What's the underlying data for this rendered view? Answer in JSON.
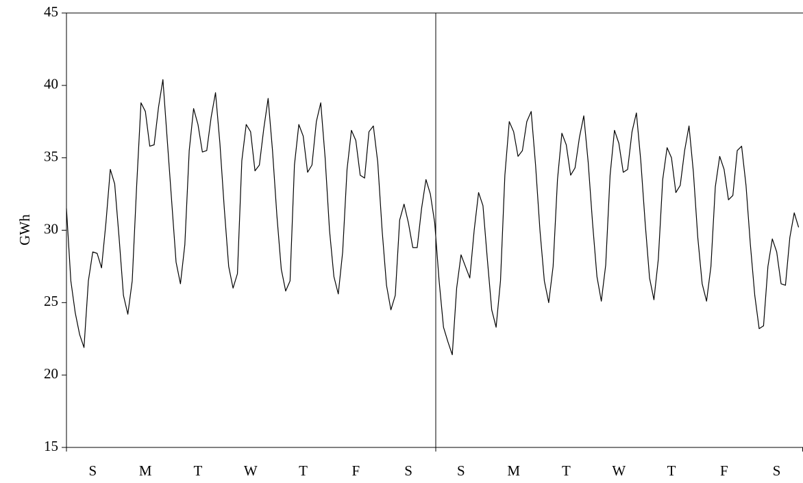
{
  "chart_data": {
    "type": "line",
    "y_label": "GWh",
    "categories": [
      "S",
      "M",
      "T",
      "W",
      "T",
      "F",
      "S",
      "S",
      "M",
      "T",
      "W",
      "T",
      "F",
      "S"
    ],
    "values": [
      [
        31.5,
        26.5,
        24.3,
        22.8,
        21.9,
        26.5,
        28.5,
        28.4,
        27.4,
        30.5,
        34.2,
        33.2
      ],
      [
        29.5,
        25.5,
        24.2,
        26.5,
        33,
        38.8,
        38.2,
        35.8,
        35.9,
        38.5,
        40.4,
        36.2
      ],
      [
        32,
        27.8,
        26.3,
        29,
        35.5,
        38.4,
        37.3,
        35.4,
        35.5,
        37.8,
        39.5,
        36
      ],
      [
        31.5,
        27.5,
        26,
        27,
        34.8,
        37.3,
        36.8,
        34.1,
        34.5,
        37,
        39.1,
        35.5
      ],
      [
        31,
        27.3,
        25.8,
        26.5,
        34.5,
        37.3,
        36.5,
        34,
        34.5,
        37.5,
        38.8,
        35
      ],
      [
        30,
        26.8,
        25.6,
        28.5,
        34.2,
        36.9,
        36.2,
        33.8,
        33.6,
        36.8,
        37.2,
        34.7
      ],
      [
        30,
        26.2,
        24.5,
        25.5,
        30.7,
        31.8,
        30.5,
        28.8,
        28.8,
        31.5,
        33.5,
        32.5
      ],
      [
        30.5,
        26.5,
        23.3,
        22.3,
        21.4,
        26,
        28.3,
        27.5,
        26.7,
        30,
        32.6,
        31.7
      ],
      [
        28,
        24.5,
        23.3,
        26.5,
        33.8,
        37.5,
        36.8,
        35.1,
        35.5,
        37.5,
        38.2,
        34.5
      ],
      [
        30,
        26.5,
        25,
        27.5,
        33.5,
        36.7,
        35.9,
        33.8,
        34.3,
        36.4,
        37.9,
        34.7
      ],
      [
        30.5,
        26.8,
        25.1,
        27.6,
        33.8,
        36.9,
        36,
        34,
        34.2,
        36.8,
        38.1,
        34.8
      ],
      [
        30.5,
        26.7,
        25.2,
        28,
        33.5,
        35.7,
        35,
        32.6,
        33.1,
        35.5,
        37.2,
        34
      ],
      [
        29.5,
        26.3,
        25.1,
        27.5,
        33,
        35.1,
        34.2,
        32.1,
        32.4,
        35.5,
        35.8,
        33.1
      ],
      [
        29,
        25.5,
        23.2,
        23.4,
        27.5,
        29.4,
        28.5,
        26.3,
        26.2,
        29.5,
        31.2,
        30.2
      ]
    ],
    "color": "#000000",
    "ylim": [
      15,
      45
    ],
    "yticks": [
      15,
      20,
      25,
      30,
      35,
      40,
      45
    ]
  }
}
